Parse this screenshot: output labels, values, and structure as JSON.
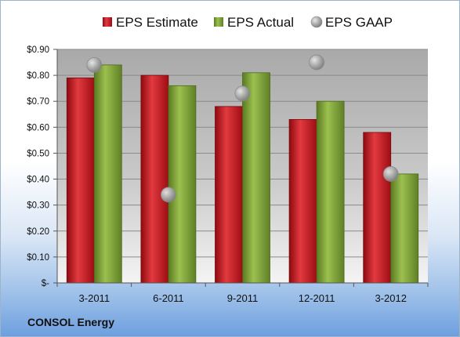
{
  "chart_data": {
    "type": "bar",
    "categories": [
      "3-2011",
      "6-2011",
      "9-2011",
      "12-2011",
      "3-2012"
    ],
    "series": [
      {
        "name": "EPS Estimate",
        "values": [
          0.79,
          0.8,
          0.68,
          0.63,
          0.58
        ],
        "color": "#c8141e"
      },
      {
        "name": "EPS Actual",
        "values": [
          0.84,
          0.76,
          0.81,
          0.7,
          0.42
        ],
        "color": "#7ea236"
      }
    ],
    "scatter_series": {
      "name": "EPS GAAP",
      "values": [
        0.84,
        0.34,
        0.73,
        0.85,
        0.42
      ],
      "color": "#a0a0a0"
    },
    "ylim": [
      0,
      0.9
    ],
    "yticks": [
      0,
      0.1,
      0.2,
      0.3,
      0.4,
      0.5,
      0.6,
      0.7,
      0.8,
      0.9
    ],
    "ytick_labels": [
      "$-",
      "$0.10",
      "$0.20",
      "$0.30",
      "$0.40",
      "$0.50",
      "$0.60",
      "$0.70",
      "$0.80",
      "$0.90"
    ],
    "legend_position": "top",
    "grid": true
  },
  "footer": {
    "company": "CONSOL Energy"
  }
}
